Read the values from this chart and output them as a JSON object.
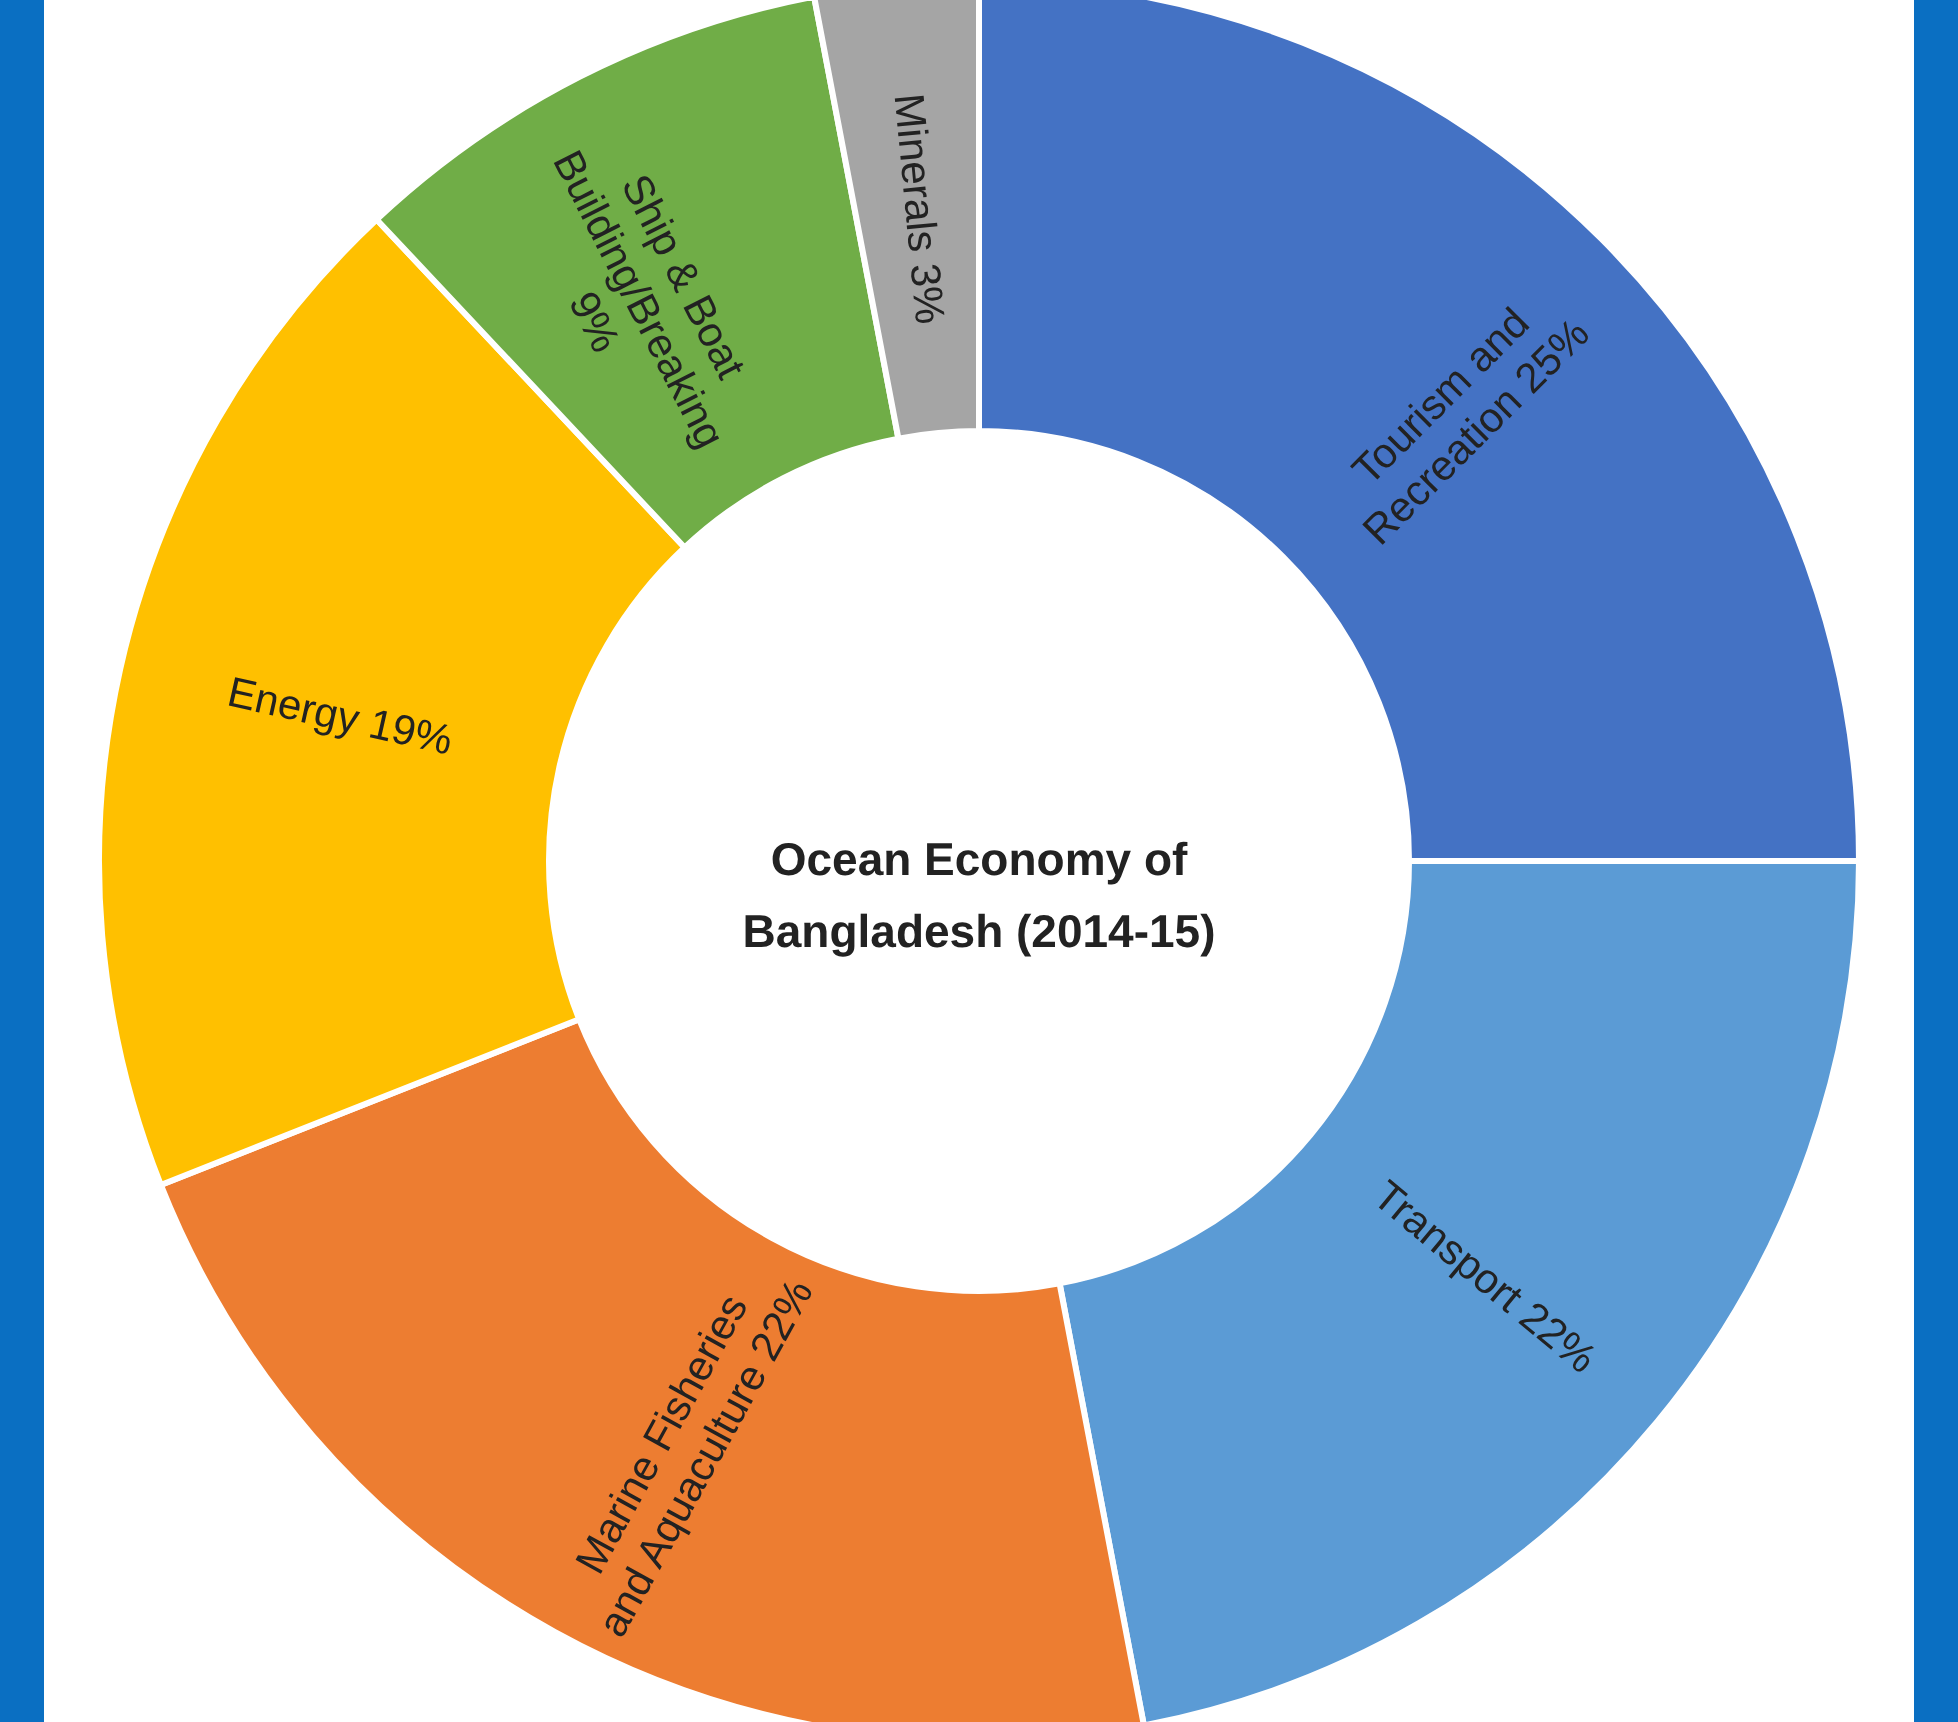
{
  "chart_data": {
    "type": "donut",
    "title": "Ocean Economy of Bangladesh (2014-15)",
    "categories": [
      "Tourism and Recreation",
      "Transport",
      "Marine Fisheries and Aquaculture",
      "Energy",
      "Ship & Boat Building/Breaking",
      "Minerals"
    ],
    "values": [
      25,
      22,
      22,
      19,
      9,
      3
    ],
    "value_labels": [
      "25%",
      "22%",
      "22%",
      "19%",
      "9%",
      "3%"
    ],
    "colors": [
      "#4472c4",
      "#5b9bd5",
      "#ed7d31",
      "#ffc000",
      "#70ad47",
      "#a5a5a5"
    ]
  }
}
